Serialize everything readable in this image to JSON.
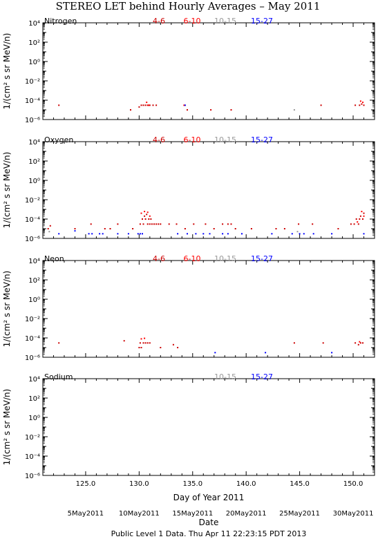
{
  "title": "STEREO LET behind Hourly Averages – May 2011",
  "xlabel": "Day of Year 2011",
  "date_label": "Date",
  "date_ticks": [
    {
      "doy": 125,
      "label": "5May2011"
    },
    {
      "doy": 130,
      "label": "10May2011"
    },
    {
      "doy": 135,
      "label": "15May2011"
    },
    {
      "doy": 140,
      "label": "20May2011"
    },
    {
      "doy": 145,
      "label": "25May2011"
    },
    {
      "doy": 150,
      "label": "30May2011"
    }
  ],
  "footer": "Public Level 1 Data. Thu Apr 11 22:23:15 PDT 2013",
  "colors": {
    "4-6": "#cc0000",
    "6-10": "#ff0000",
    "10-15": "#999999",
    "15-27": "#0000ff"
  },
  "chart_data": [
    {
      "type": "scatter",
      "panel": "Nitrogen",
      "ylabel": "1/(cm² s sr MeV/n)",
      "yscale": "log",
      "xlim": [
        121,
        152
      ],
      "ylim": [
        1e-06,
        10000.0
      ],
      "x_ticks": [
        "125.0",
        "130.0",
        "135.0",
        "140.0",
        "145.0",
        "150.0"
      ],
      "y_ticks": [
        "10⁴",
        "10²",
        "10⁰",
        "10⁻²",
        "10⁻⁴",
        "10⁻⁶"
      ],
      "legend": [
        "4-6",
        "6-10",
        "10-15",
        "15-27"
      ],
      "series": [
        {
          "name": "4-6",
          "points": [
            [
              122.5,
              3e-05
            ],
            [
              129.2,
              1e-05
            ],
            [
              130.0,
              2e-05
            ],
            [
              130.2,
              3e-05
            ],
            [
              130.4,
              3e-05
            ],
            [
              130.6,
              3e-05
            ],
            [
              130.8,
              3e-05
            ],
            [
              131.0,
              3e-05
            ],
            [
              131.3,
              3e-05
            ],
            [
              131.6,
              3e-05
            ],
            [
              134.5,
              1e-05
            ],
            [
              136.7,
              1e-05
            ],
            [
              138.6,
              1e-05
            ],
            [
              147.0,
              3e-05
            ],
            [
              150.2,
              3e-05
            ],
            [
              150.6,
              3e-05
            ],
            [
              150.8,
              4e-05
            ],
            [
              151.0,
              3e-05
            ]
          ]
        },
        {
          "name": "6-10",
          "points": [
            [
              130.7,
              6e-05
            ],
            [
              130.9,
              3e-05
            ],
            [
              134.2,
              3e-05
            ],
            [
              150.7,
              8e-05
            ],
            [
              150.9,
              6e-05
            ]
          ]
        },
        {
          "name": "10-15",
          "points": [
            [
              144.5,
              1e-05
            ]
          ]
        },
        {
          "name": "15-27",
          "points": [
            [
              134.3,
              3e-05
            ]
          ]
        }
      ]
    },
    {
      "type": "scatter",
      "panel": "Oxygen",
      "ylabel": "1/(cm² s sr MeV/n)",
      "yscale": "log",
      "xlim": [
        121,
        152
      ],
      "ylim": [
        1e-06,
        10000.0
      ],
      "x_ticks": [
        "125.0",
        "130.0",
        "135.0",
        "140.0",
        "145.0",
        "150.0"
      ],
      "y_ticks": [
        "10⁴",
        "10²",
        "10⁰",
        "10⁻²",
        "10⁻⁴",
        "10⁻⁶"
      ],
      "legend": [
        "4-6",
        "6-10",
        "10-15",
        "15-27"
      ],
      "series": [
        {
          "name": "4-6",
          "points": [
            [
              121.5,
              1e-05
            ],
            [
              121.7,
              2e-05
            ],
            [
              124.0,
              1e-05
            ],
            [
              125.5,
              3e-05
            ],
            [
              126.8,
              1e-05
            ],
            [
              127.3,
              1e-05
            ],
            [
              128.0,
              3e-05
            ],
            [
              129.4,
              1e-05
            ],
            [
              130.1,
              3e-05
            ],
            [
              130.3,
              0.0001
            ],
            [
              130.4,
              3e-05
            ],
            [
              130.5,
              0.0002
            ],
            [
              130.6,
              0.0001
            ],
            [
              130.7,
              0.0003
            ],
            [
              130.8,
              3e-05
            ],
            [
              130.9,
              0.0001
            ],
            [
              131.0,
              3e-05
            ],
            [
              131.1,
              0.0001
            ],
            [
              131.2,
              3e-05
            ],
            [
              131.4,
              3e-05
            ],
            [
              131.6,
              3e-05
            ],
            [
              131.8,
              3e-05
            ],
            [
              132.0,
              3e-05
            ],
            [
              132.8,
              3e-05
            ],
            [
              133.5,
              3e-05
            ],
            [
              134.3,
              1e-05
            ],
            [
              135.1,
              3e-05
            ],
            [
              136.2,
              3e-05
            ],
            [
              137.0,
              1e-05
            ],
            [
              137.8,
              3e-05
            ],
            [
              138.3,
              3e-05
            ],
            [
              138.6,
              3e-05
            ],
            [
              139.0,
              1e-05
            ],
            [
              140.5,
              1e-05
            ],
            [
              142.8,
              1e-05
            ],
            [
              143.6,
              1e-05
            ],
            [
              144.9,
              3e-05
            ],
            [
              146.2,
              3e-05
            ],
            [
              148.6,
              1e-05
            ],
            [
              149.8,
              3e-05
            ],
            [
              150.1,
              3e-05
            ],
            [
              150.3,
              0.0001
            ],
            [
              150.5,
              3e-05
            ],
            [
              150.6,
              0.0001
            ],
            [
              150.7,
              0.0002
            ],
            [
              150.9,
              0.0001
            ],
            [
              151.0,
              0.0004
            ]
          ]
        },
        {
          "name": "6-10",
          "points": [
            [
              130.2,
              0.0004
            ],
            [
              130.5,
              0.0006
            ],
            [
              130.8,
              0.0005
            ],
            [
              131.0,
              0.0002
            ],
            [
              150.4,
              5e-05
            ],
            [
              150.8,
              0.0006
            ],
            [
              151.0,
              0.0002
            ]
          ]
        },
        {
          "name": "10-15",
          "points": [
            [
              121.6,
              5e-06
            ],
            [
              144.8,
              5e-06
            ]
          ]
        },
        {
          "name": "15-27",
          "points": [
            [
              122.5,
              3e-06
            ],
            [
              124.0,
              6e-06
            ],
            [
              125.3,
              3e-06
            ],
            [
              125.6,
              3e-06
            ],
            [
              126.3,
              3e-06
            ],
            [
              126.6,
              3e-06
            ],
            [
              128.0,
              3e-06
            ],
            [
              129.0,
              3e-06
            ],
            [
              129.9,
              3e-06
            ],
            [
              130.1,
              3e-06
            ],
            [
              130.3,
              3e-06
            ],
            [
              133.6,
              3e-06
            ],
            [
              134.5,
              3e-06
            ],
            [
              135.3,
              3e-06
            ],
            [
              136.0,
              3e-06
            ],
            [
              136.6,
              3e-06
            ],
            [
              137.8,
              3e-06
            ],
            [
              138.3,
              3e-06
            ],
            [
              139.6,
              3e-06
            ],
            [
              142.4,
              3e-06
            ],
            [
              144.3,
              3e-06
            ],
            [
              145.0,
              3e-06
            ],
            [
              145.4,
              3e-06
            ],
            [
              146.3,
              3e-06
            ],
            [
              148.0,
              3e-06
            ],
            [
              151.0,
              3e-06
            ]
          ]
        }
      ]
    },
    {
      "type": "scatter",
      "panel": "Neon",
      "ylabel": "1/(cm² s sr MeV/n)",
      "yscale": "log",
      "xlim": [
        121,
        152
      ],
      "ylim": [
        1e-06,
        10000.0
      ],
      "x_ticks": [
        "125.0",
        "130.0",
        "135.0",
        "140.0",
        "145.0",
        "150.0"
      ],
      "y_ticks": [
        "10⁴",
        "10²",
        "10⁰",
        "10⁻²",
        "10⁻⁴",
        "10⁻⁶"
      ],
      "legend": [
        "4-6",
        "6-10",
        "10-15",
        "15-27"
      ],
      "series": [
        {
          "name": "4-6",
          "points": [
            [
              122.5,
              3e-05
            ],
            [
              128.6,
              5e-05
            ],
            [
              130.0,
              1e-05
            ],
            [
              130.1,
              3e-05
            ],
            [
              130.2,
              1e-05
            ],
            [
              130.4,
              3e-05
            ],
            [
              130.6,
              3e-05
            ],
            [
              130.8,
              3e-05
            ],
            [
              131.0,
              3e-05
            ],
            [
              132.0,
              1e-05
            ],
            [
              133.2,
              2e-05
            ],
            [
              133.6,
              1e-05
            ],
            [
              144.5,
              3e-05
            ],
            [
              147.2,
              3e-05
            ],
            [
              150.2,
              3e-05
            ],
            [
              150.5,
              2e-05
            ],
            [
              150.7,
              3e-05
            ],
            [
              150.9,
              3e-05
            ]
          ]
        },
        {
          "name": "6-10",
          "points": [
            [
              130.2,
              8e-05
            ],
            [
              130.5,
              9e-05
            ],
            [
              150.6,
              4e-05
            ]
          ]
        },
        {
          "name": "10-15",
          "points": []
        },
        {
          "name": "15-27",
          "points": [
            [
              137.1,
              3e-06
            ],
            [
              141.8,
              3e-06
            ],
            [
              148.0,
              3e-06
            ]
          ]
        }
      ]
    },
    {
      "type": "scatter",
      "panel": "Sodium",
      "ylabel": "1/(cm² s sr MeV/n)",
      "yscale": "log",
      "xlim": [
        121,
        152
      ],
      "ylim": [
        1e-06,
        10000.0
      ],
      "x_ticks": [
        "125.0",
        "130.0",
        "135.0",
        "140.0",
        "145.0",
        "150.0"
      ],
      "y_ticks": [
        "10⁴",
        "10²",
        "10⁰",
        "10⁻²",
        "10⁻⁴",
        "10⁻⁶"
      ],
      "legend": [
        "10-15",
        "15-27"
      ],
      "series": [
        {
          "name": "10-15",
          "points": []
        },
        {
          "name": "15-27",
          "points": []
        }
      ]
    }
  ]
}
